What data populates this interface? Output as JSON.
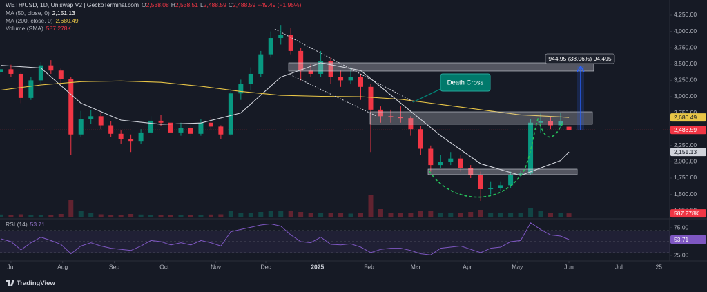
{
  "header": {
    "symbol": "WETH/USD, 1D, Uniswap V2 | GeckoTerminal.com",
    "fields": [
      {
        "label": "O",
        "value": "2,538.08"
      },
      {
        "label": "H",
        "value": "2,538.51"
      },
      {
        "label": "L",
        "value": "2,488.59"
      },
      {
        "label": "C",
        "value": "2,488.59"
      }
    ],
    "change": "−49.49 (−1.95%)"
  },
  "chart_data": [
    {
      "type": "candlestick",
      "x": [
        -6,
        0,
        6,
        12,
        18,
        24,
        30,
        36,
        42,
        48,
        54,
        60,
        66,
        72,
        78,
        84,
        90,
        96,
        102,
        108,
        114,
        120,
        126,
        132,
        138,
        144,
        150,
        156,
        162,
        168,
        174,
        180,
        186,
        192,
        198,
        204,
        210,
        216,
        222,
        228,
        234,
        240,
        246,
        252,
        258,
        264,
        270,
        276,
        282,
        288,
        294,
        300,
        306,
        312,
        318,
        324,
        330,
        335
      ],
      "open": [
        3380,
        3420,
        3350,
        2980,
        3250,
        3480,
        3400,
        3270,
        2420,
        2650,
        2700,
        2560,
        2430,
        2350,
        2320,
        2450,
        2630,
        2600,
        2450,
        2520,
        2430,
        2600,
        2540,
        2420,
        3050,
        3200,
        3350,
        3650,
        3900,
        3950,
        3700,
        3400,
        3350,
        3550,
        3300,
        3250,
        3300,
        3150,
        2800,
        2700,
        2690,
        2670,
        2500,
        2200,
        1950,
        2000,
        2050,
        1900,
        1800,
        1580,
        1600,
        1640,
        1800,
        1820,
        2600,
        2620,
        2560,
        2538.08
      ],
      "high": [
        3480,
        3490,
        3380,
        3300,
        3530,
        3560,
        3430,
        3300,
        2780,
        2800,
        2760,
        2620,
        2480,
        2420,
        2500,
        2700,
        2720,
        2640,
        2600,
        2580,
        2650,
        2690,
        2560,
        3120,
        3260,
        3450,
        3700,
        4000,
        4100,
        4050,
        3750,
        3500,
        3700,
        3600,
        3400,
        3450,
        3350,
        3200,
        2850,
        2800,
        2850,
        2700,
        2550,
        2250,
        2100,
        2150,
        2100,
        1950,
        1850,
        1700,
        1700,
        1850,
        1860,
        2650,
        2740,
        2700,
        2750,
        2538.51
      ],
      "low": [
        3330,
        3300,
        2900,
        2950,
        3200,
        3350,
        3150,
        2100,
        2380,
        2580,
        2500,
        2380,
        2280,
        2150,
        2280,
        2420,
        2550,
        2400,
        2400,
        2380,
        2400,
        2480,
        2350,
        2400,
        2950,
        3100,
        3300,
        3600,
        3800,
        3650,
        3250,
        3300,
        3300,
        3200,
        3150,
        3200,
        2950,
        2150,
        2600,
        2600,
        2600,
        2400,
        2100,
        1850,
        1900,
        1950,
        1850,
        1750,
        1400,
        1500,
        1550,
        1600,
        1760,
        1800,
        2450,
        2500,
        2520,
        2488.59
      ],
      "close": [
        3420,
        3350,
        2980,
        3250,
        3480,
        3400,
        3270,
        2420,
        2650,
        2700,
        2560,
        2430,
        2350,
        2320,
        2450,
        2630,
        2600,
        2450,
        2520,
        2430,
        2600,
        2540,
        2420,
        3050,
        3200,
        3350,
        3650,
        3900,
        3950,
        3700,
        3400,
        3350,
        3550,
        3300,
        3250,
        3300,
        3150,
        2800,
        2700,
        2690,
        2670,
        2500,
        2200,
        1950,
        2000,
        2050,
        1900,
        1800,
        1580,
        1600,
        1640,
        1800,
        1820,
        2600,
        2620,
        2560,
        2620,
        2488.59
      ],
      "close_label": "2,488.59",
      "colors": {
        "up": "#089981",
        "down": "#f23645"
      },
      "xlim": [
        -6.6,
        395.5
      ],
      "ylim": [
        1146,
        4483
      ],
      "yticks": [
        {
          "value": 4250,
          "label": "4,250.00"
        },
        {
          "value": 4000,
          "label": "4,000.00"
        },
        {
          "value": 3750,
          "label": "3,750.00"
        },
        {
          "value": 3500,
          "label": "3,500.00"
        },
        {
          "value": 3250,
          "label": "3,250.00"
        },
        {
          "value": 3000,
          "label": "3,000.00"
        },
        {
          "value": 2750,
          "label": "2,750.00"
        },
        {
          "value": 2250,
          "label": "2,250.00"
        },
        {
          "value": 2000,
          "label": "2,000.00"
        },
        {
          "value": 1750,
          "label": "1,750.00"
        },
        {
          "value": 1500,
          "label": "1,500.00"
        },
        {
          "value": 1250,
          "label": "1,250.00"
        }
      ],
      "xticks": [
        {
          "value": 0,
          "label": "Jul"
        },
        {
          "value": 31,
          "label": "Aug"
        },
        {
          "value": 62,
          "label": "Sep"
        },
        {
          "value": 92,
          "label": "Oct"
        },
        {
          "value": 123,
          "label": "Nov"
        },
        {
          "value": 153,
          "label": "Dec"
        },
        {
          "value": 184,
          "label": "2025"
        },
        {
          "value": 215,
          "label": "Feb"
        },
        {
          "value": 243,
          "label": "Mar"
        },
        {
          "value": 274,
          "label": "Apr"
        },
        {
          "value": 304,
          "label": "May"
        },
        {
          "value": 335,
          "label": "Jun"
        },
        {
          "value": 365,
          "label": "Jul"
        },
        {
          "value": 389,
          "label": "25"
        }
      ],
      "overlays": [
        {
          "name": "MA (50, close, 0)",
          "color": "#d1d4dc",
          "label_color": "#131722",
          "x": [
            -6,
            18,
            42,
            66,
            90,
            114,
            138,
            162,
            186,
            210,
            234,
            258,
            282,
            306,
            330,
            335
          ],
          "values": [
            3480,
            3440,
            2900,
            2640,
            2575,
            2595,
            2750,
            3300,
            3520,
            3400,
            2900,
            2400,
            1970,
            1790,
            2020,
            2151.13
          ],
          "last_label": "2,151.13"
        },
        {
          "name": "MA (200, close, 0)",
          "color": "#e8c547",
          "label_color": "#131722",
          "x": [
            -6,
            18,
            42,
            66,
            90,
            114,
            138,
            162,
            186,
            210,
            234,
            258,
            282,
            306,
            330,
            335
          ],
          "values": [
            3100,
            3180,
            3230,
            3240,
            3220,
            3160,
            3080,
            3020,
            3005,
            3000,
            2960,
            2880,
            2800,
            2720,
            2690,
            2680.49
          ],
          "last_label": "2,680.49"
        }
      ],
      "volume": {
        "name": "Volume (SMA)",
        "color": "#f23645",
        "values": [
          420,
          380,
          450,
          400,
          350,
          380,
          500,
          2500,
          900,
          600,
          450,
          400,
          380,
          500,
          420,
          380,
          350,
          400,
          380,
          350,
          400,
          420,
          450,
          900,
          700,
          650,
          800,
          900,
          1000,
          900,
          800,
          600,
          650,
          700,
          600,
          550,
          650,
          3200,
          1200,
          700,
          600,
          650,
          900,
          1000,
          700,
          600,
          700,
          800,
          1100,
          700,
          600,
          700,
          650,
          1300,
          900,
          700,
          650,
          587.278
        ],
        "last_label": "587.278K",
        "ylim": [
          0,
          6000
        ]
      },
      "annotations": [
        "Death Cross",
        "944.95 (38.06%) 94,495"
      ]
    },
    {
      "type": "line",
      "name": "RSI (14)",
      "color": "#7e57c2",
      "values": [
        55,
        50,
        35,
        48,
        58,
        52,
        45,
        28,
        42,
        48,
        42,
        38,
        36,
        34,
        42,
        52,
        50,
        44,
        48,
        44,
        52,
        48,
        42,
        68,
        72,
        76,
        80,
        82,
        78,
        62,
        50,
        48,
        58,
        45,
        44,
        46,
        40,
        30,
        36,
        38,
        38,
        34,
        28,
        26,
        38,
        40,
        42,
        36,
        30,
        38,
        40,
        50,
        52,
        84,
        72,
        62,
        60,
        53.71
      ],
      "last_label": "53.71",
      "ylim": [
        15,
        90
      ],
      "yticks": [
        {
          "value": 75,
          "label": "75.00"
        },
        {
          "value": 25,
          "label": "25.00"
        }
      ],
      "band": [
        30,
        70
      ],
      "midline": 50
    }
  ],
  "footer": {
    "brand": "TradingView"
  }
}
